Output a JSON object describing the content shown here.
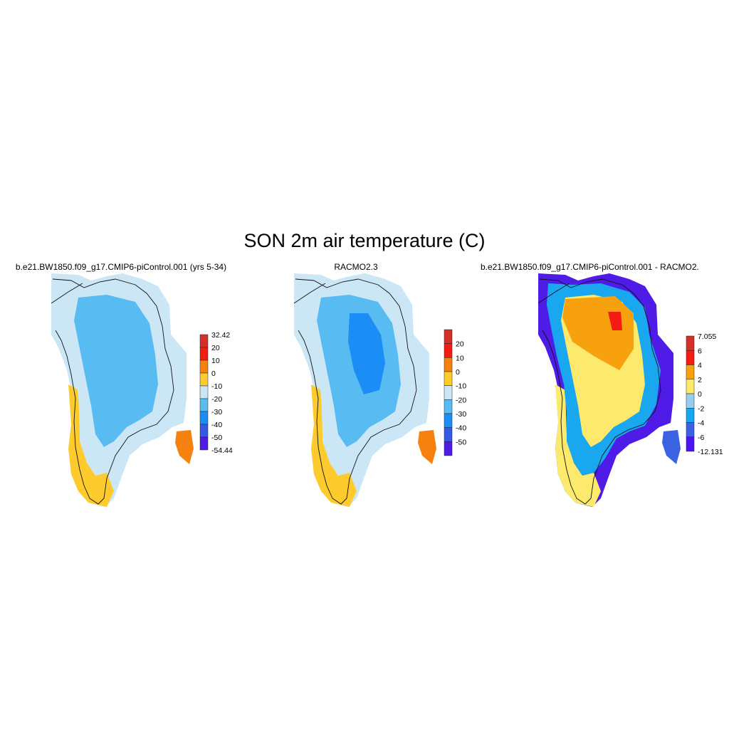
{
  "figure": {
    "title": "SON 2m air temperature (C)"
  },
  "panels": [
    {
      "id": "model",
      "title": "b.e21.BW1850.f09_g17.CMIP6-piControl.001 (yrs 5-34)",
      "colorbar": {
        "labels": [
          "32.42",
          "20",
          "10",
          "0",
          "-10",
          "-20",
          "-30",
          "-40",
          "-50",
          "-54.44"
        ],
        "colors": [
          "#d3302a",
          "#f41c12",
          "#f7810f",
          "#fecb2c",
          "#cbe7f6",
          "#58bcf3",
          "#1a8ef5",
          "#3459e3",
          "#4e1be7"
        ]
      }
    },
    {
      "id": "obs",
      "title": "RACMO2.3",
      "colorbar": {
        "labels": [
          "20",
          "10",
          "0",
          "-10",
          "-20",
          "-30",
          "-40",
          "-50"
        ],
        "colors": [
          "#d3302a",
          "#f41c12",
          "#f7810f",
          "#fecb2c",
          "#cbe7f6",
          "#58bcf3",
          "#1a8ef5",
          "#3459e3",
          "#4e1be7"
        ]
      }
    },
    {
      "id": "diff",
      "title": "b.e21.BW1850.f09_g17.CMIP6-piControl.001 - RACMO2.",
      "colorbar": {
        "labels": [
          "7.055",
          "6",
          "4",
          "2",
          "0",
          "-2",
          "-4",
          "-6",
          "-12.131"
        ],
        "colors": [
          "#d3302a",
          "#f41c12",
          "#f7a10f",
          "#fde96b",
          "#98cdf0",
          "#19a7f0",
          "#3b62e1",
          "#4c14f0"
        ]
      }
    }
  ]
}
